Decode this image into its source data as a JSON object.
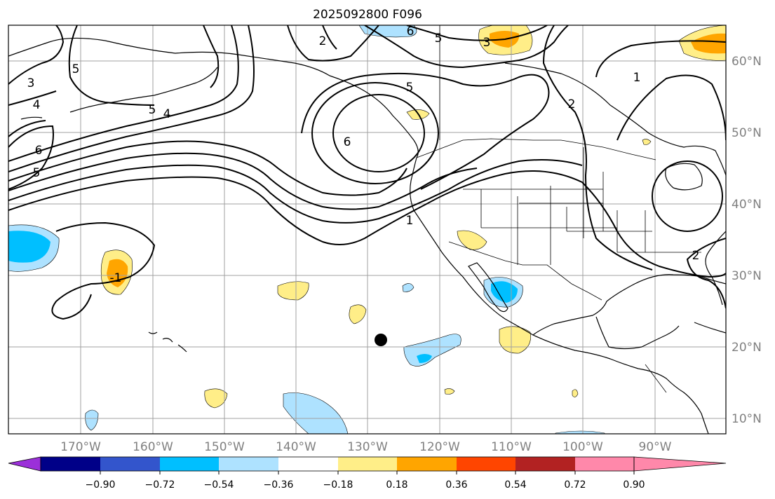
{
  "title": "2025092800 F096",
  "lon_labels": [
    "170°W",
    "160°W",
    "150°W",
    "140°W",
    "130°W",
    "120°W",
    "110°W",
    "100°W",
    "90°W"
  ],
  "lat_labels": [
    "60°N",
    "50°N",
    "40°N",
    "30°N",
    "20°N",
    "10°N"
  ],
  "colorbar": {
    "ticks": [
      "−0.90",
      "−0.72",
      "−0.54",
      "−0.36",
      "−0.18",
      "0.18",
      "0.36",
      "0.54",
      "0.72",
      "0.90"
    ],
    "colors": [
      "#9b30d9",
      "#000088",
      "#3355cc",
      "#00bfff",
      "#aee2ff",
      "#ffffff",
      "#ffee88",
      "#ffa500",
      "#ff4500",
      "#b22222",
      "#ff88aa"
    ]
  },
  "contour_labels": [
    "6",
    "5",
    "2",
    "3",
    "5",
    "5",
    "2",
    "4",
    "4",
    "5",
    "6",
    "6",
    "5",
    "1",
    "1",
    "-1",
    "2",
    "3"
  ],
  "marker": "storm-center"
}
